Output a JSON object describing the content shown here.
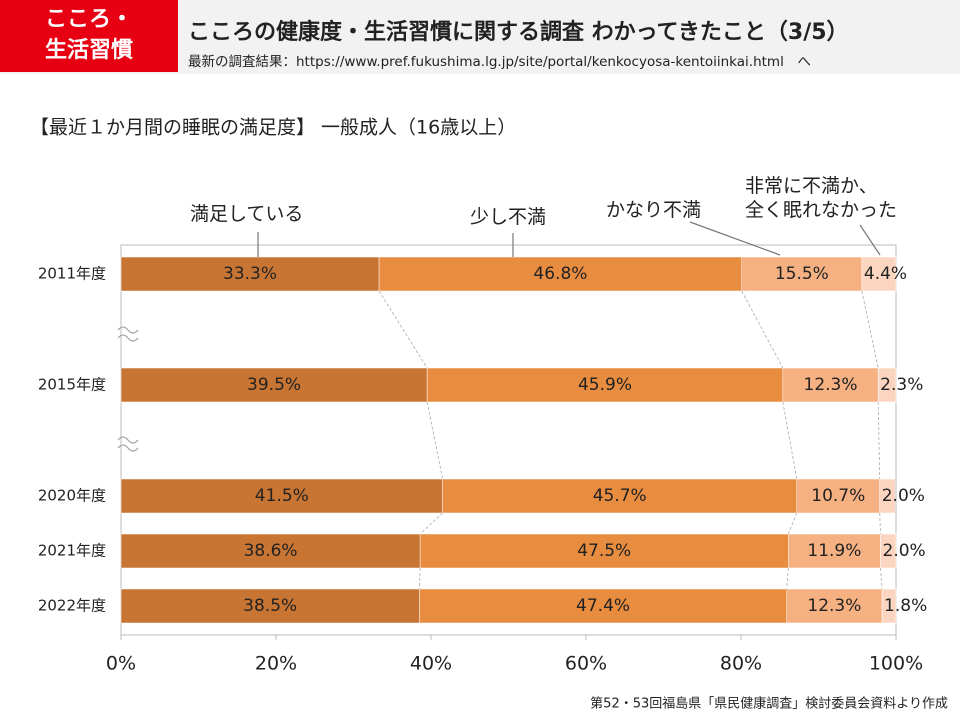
{
  "header": {
    "badge": [
      "こころ・",
      "生活習慣"
    ],
    "title": "こころの健康度・生活習慣に関する調査 わかってきたこと（3/5）",
    "subtitle": "最新の調査結果：https://www.pref.fukushima.lg.jp/site/portal/kenkocyosa-kentoiinkai.html　へ"
  },
  "chart_data": {
    "type": "stacked-bar-horizontal",
    "title": "【最近１か月間の睡眠の満足度】 一般成人（16歳以上）",
    "categories": [
      "2011年度",
      "2015年度",
      "2020年度",
      "2021年度",
      "2022年度"
    ],
    "series": [
      {
        "name": "満足している",
        "color": "#c87533",
        "values": [
          33.3,
          39.5,
          41.5,
          38.6,
          38.5
        ],
        "value_labels": [
          "33.3%",
          "39.5%",
          "41.5%",
          "38.6%",
          "38.5%"
        ]
      },
      {
        "name": "少し不満",
        "color": "#e88c40",
        "values": [
          46.8,
          45.9,
          45.7,
          47.5,
          47.4
        ],
        "value_labels": [
          "46.8%",
          "45.9%",
          "45.7%",
          "47.5%",
          "47.4%"
        ]
      },
      {
        "name": "かなり不満",
        "color": "#f6b182",
        "values": [
          15.5,
          12.3,
          10.7,
          11.9,
          12.3
        ],
        "value_labels": [
          "15.5%",
          "12.3%",
          "10.7%",
          "11.9%",
          "12.3%"
        ]
      },
      {
        "name": "非常に不満か、\n全く眠れなかった",
        "color": "#fbd5c0",
        "values": [
          4.4,
          2.3,
          2.0,
          2.0,
          1.8
        ],
        "value_labels": [
          "4.4%",
          "2.3%",
          "2.0%",
          "2.0%",
          "1.8%"
        ]
      }
    ],
    "xlim": [
      0,
      100
    ],
    "xticks": [
      {
        "value": 0,
        "label": "0%"
      },
      {
        "value": 20,
        "label": "20%"
      },
      {
        "value": 40,
        "label": "40%"
      },
      {
        "value": 60,
        "label": "60%"
      },
      {
        "value": 80,
        "label": "80%"
      },
      {
        "value": 100,
        "label": "100%"
      }
    ],
    "source": "第52・53回福島県「県民健康調査」検討委員会資料より作成"
  }
}
